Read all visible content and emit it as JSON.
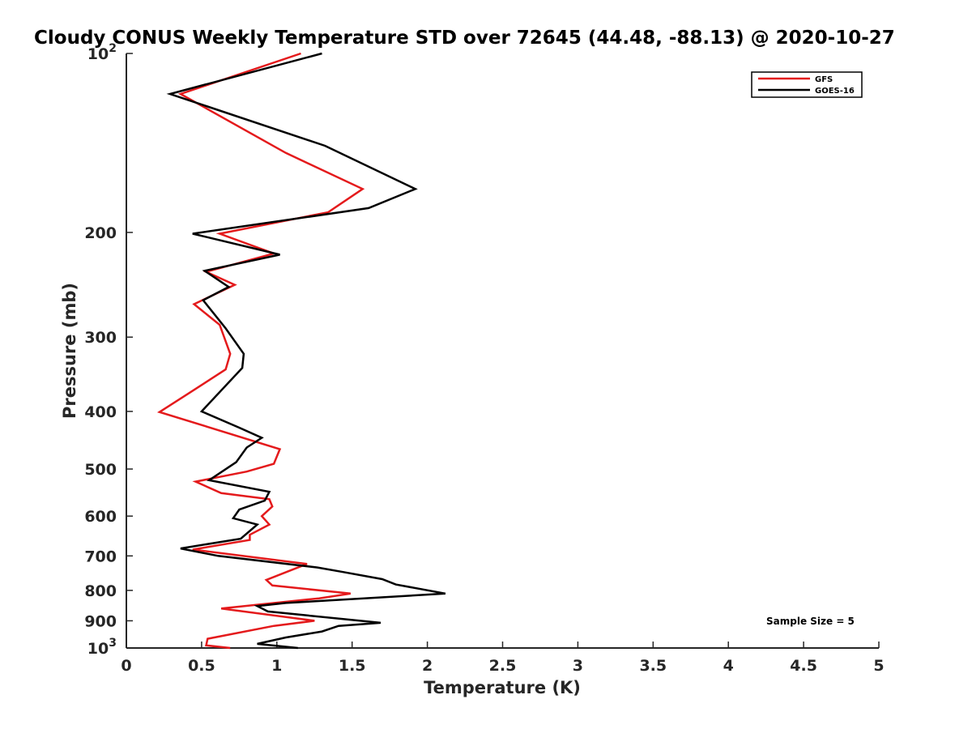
{
  "chart_data": {
    "type": "line",
    "title": "Cloudy CONUS Weekly Temperature STD over 72645 (44.48, -88.13) @ 2020-10-27",
    "xlabel": "Temperature (K)",
    "ylabel": "Pressure (mb)",
    "xlim": [
      0,
      5
    ],
    "ylim": [
      100,
      1000
    ],
    "y_scale": "log",
    "y_reversed": true,
    "x_ticks": [
      "0",
      "0.5",
      "1",
      "1.5",
      "2",
      "2.5",
      "3",
      "3.5",
      "4",
      "4.5",
      "5"
    ],
    "y_ticks": [
      {
        "value": 100,
        "base": "10",
        "exp": "2"
      },
      {
        "value": 200,
        "label": "200"
      },
      {
        "value": 300,
        "label": "300"
      },
      {
        "value": 400,
        "label": "400"
      },
      {
        "value": 500,
        "label": "500"
      },
      {
        "value": 600,
        "label": "600"
      },
      {
        "value": 700,
        "label": "700"
      },
      {
        "value": 800,
        "label": "800"
      },
      {
        "value": 900,
        "label": "900"
      },
      {
        "value": 1000,
        "base": "10",
        "exp": "3"
      }
    ],
    "grid": false,
    "legend_position": "top-right",
    "annotation": "Sample Size = 5",
    "series": [
      {
        "name": "GFS",
        "color": "#e41a1c",
        "points": [
          [
            1.16,
            100
          ],
          [
            0.36,
            117
          ],
          [
            1.06,
            147
          ],
          [
            1.57,
            169
          ],
          [
            1.34,
            185
          ],
          [
            0.62,
            201
          ],
          [
            0.98,
            217
          ],
          [
            0.53,
            233
          ],
          [
            0.72,
            245
          ],
          [
            0.45,
            264
          ],
          [
            0.62,
            286
          ],
          [
            0.69,
            320
          ],
          [
            0.66,
            340
          ],
          [
            0.4,
            375
          ],
          [
            0.22,
            401
          ],
          [
            1.02,
            463
          ],
          [
            0.98,
            490
          ],
          [
            0.8,
            505
          ],
          [
            0.46,
            525
          ],
          [
            0.63,
            549
          ],
          [
            0.95,
            562
          ],
          [
            0.97,
            578
          ],
          [
            0.9,
            600
          ],
          [
            0.95,
            620
          ],
          [
            0.82,
            645
          ],
          [
            0.82,
            658
          ],
          [
            0.44,
            683
          ],
          [
            1.2,
            722
          ],
          [
            0.93,
            768
          ],
          [
            0.97,
            785
          ],
          [
            1.49,
            810
          ],
          [
            1.28,
            825
          ],
          [
            0.63,
            858
          ],
          [
            1.25,
            900
          ],
          [
            0.98,
            918
          ],
          [
            0.54,
            965
          ],
          [
            0.53,
            990
          ],
          [
            0.69,
            1000
          ]
        ]
      },
      {
        "name": "GOES-16",
        "color": "#000000",
        "points": [
          [
            1.3,
            100
          ],
          [
            0.29,
            117
          ],
          [
            1.32,
            143
          ],
          [
            1.92,
            169
          ],
          [
            1.61,
            182
          ],
          [
            0.44,
            201
          ],
          [
            1.02,
            218
          ],
          [
            0.52,
            232
          ],
          [
            0.68,
            247
          ],
          [
            0.51,
            260
          ],
          [
            0.66,
            290
          ],
          [
            0.78,
            320
          ],
          [
            0.77,
            338
          ],
          [
            0.5,
            400
          ],
          [
            0.75,
            426
          ],
          [
            0.9,
            443
          ],
          [
            0.8,
            460
          ],
          [
            0.73,
            487
          ],
          [
            0.55,
            522
          ],
          [
            0.95,
            546
          ],
          [
            0.92,
            565
          ],
          [
            0.75,
            585
          ],
          [
            0.71,
            605
          ],
          [
            0.87,
            620
          ],
          [
            0.76,
            655
          ],
          [
            0.36,
            680
          ],
          [
            0.61,
            700
          ],
          [
            1.27,
            732
          ],
          [
            1.44,
            745
          ],
          [
            1.7,
            766
          ],
          [
            1.79,
            782
          ],
          [
            2.12,
            810
          ],
          [
            1.06,
            840
          ],
          [
            0.87,
            850
          ],
          [
            0.94,
            868
          ],
          [
            1.69,
            907
          ],
          [
            1.41,
            918
          ],
          [
            1.3,
            938
          ],
          [
            1.06,
            960
          ],
          [
            0.87,
            984
          ],
          [
            1.14,
            1000
          ]
        ]
      }
    ]
  }
}
